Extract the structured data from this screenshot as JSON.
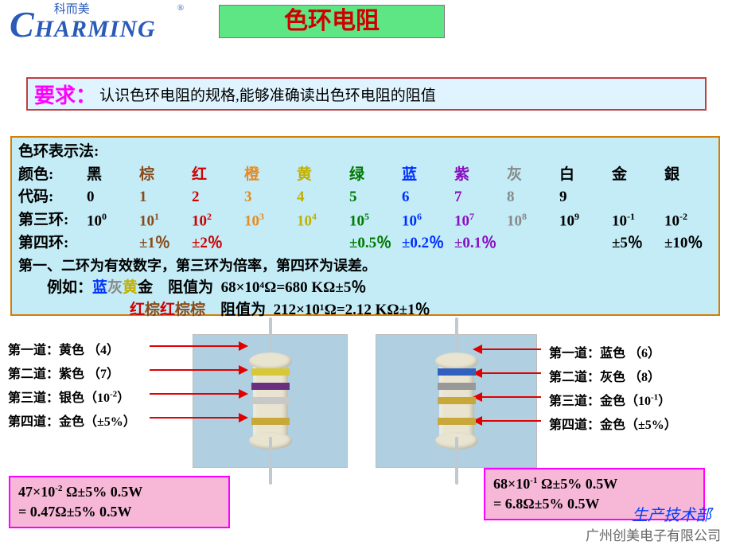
{
  "logo": {
    "latin": "HARMING",
    "big": "C",
    "cn": "科而美",
    "reg": "®"
  },
  "title": "色环电阻",
  "requirement": {
    "label": "要求：",
    "text": "认识色环电阻的规格,能够准确读出色环电阻的阻值"
  },
  "table": {
    "heading": "色环表示法:",
    "row_color_label": "颜色:",
    "row_code_label": "代码:",
    "row_third_label": "第三环:",
    "row_fourth_label": "第四环:",
    "colors": [
      "黑",
      "棕",
      "红",
      "橙",
      "黄",
      "绿",
      "蓝",
      "紫",
      "灰",
      "白",
      "金",
      "銀"
    ],
    "color_hex": [
      "#000000",
      "#8a4a1a",
      "#d00000",
      "#e88a20",
      "#c0b000",
      "#007a00",
      "#0030ff",
      "#8a10c0",
      "#888888",
      "#000000",
      "#000000",
      "#000000"
    ],
    "codes": [
      "0",
      "1",
      "2",
      "3",
      "4",
      "5",
      "6",
      "7",
      "8",
      "9",
      "",
      ""
    ],
    "third_base": "10",
    "third_exp": [
      "0",
      "1",
      "2",
      "3",
      "4",
      "5",
      "6",
      "7",
      "8",
      "9",
      "-1",
      "-2"
    ],
    "fourth": [
      "",
      "±1％",
      "±2％",
      "",
      "",
      "±0.5％",
      "±0.2％",
      "±0.1％",
      "",
      "",
      "±5％",
      "±10％"
    ],
    "note": "第一、二环为有效数字，第三环为倍率，第四环为误差。",
    "example_label": "例如：",
    "ex1_colors": [
      {
        "t": "蓝",
        "c": "#0030ff"
      },
      {
        "t": "灰",
        "c": "#888888"
      },
      {
        "t": "黄",
        "c": "#c0b000"
      },
      {
        "t": "金",
        "c": "#000000"
      }
    ],
    "ex1_rest": "    阻值为  68×10⁴Ω=680 KΩ±5％",
    "ex2_colors": [
      {
        "t": "红",
        "c": "#d00000"
      },
      {
        "t": "棕",
        "c": "#8a4a1a"
      },
      {
        "t": "红",
        "c": "#d00000"
      },
      {
        "t": "棕",
        "c": "#8a4a1a"
      },
      {
        "t": "棕",
        "c": "#8a4a1a"
      }
    ],
    "ex2_rest": "    阻值为  212×10¹Ω=2.12 KΩ±1％"
  },
  "left_ex": {
    "bands": [
      {
        "label": "第一道：黄色  （4）"
      },
      {
        "label": "第二道：紫色  （7）"
      },
      {
        "label": "第三道：银色（10",
        "sup": "-2",
        "tail": "）"
      },
      {
        "label": "第四道：金色（±5%）"
      }
    ],
    "band_colors": [
      "#d8c838",
      "#6a3080",
      "#c8c8c8",
      "#c8a838"
    ],
    "result_l1": "47×10",
    "result_sup": "-2",
    "result_l1b": " Ω±5%  0.5W",
    "result_l2": "= 0.47Ω±5%  0.5W"
  },
  "right_ex": {
    "bands": [
      {
        "label": "第一道：蓝色  （6）"
      },
      {
        "label": "第二道：灰色  （8）"
      },
      {
        "label": "第三道：金色（10",
        "sup": "-1",
        "tail": "）"
      },
      {
        "label": "第四道：金色（±5%）"
      }
    ],
    "band_colors": [
      "#3060c0",
      "#989898",
      "#c8a838",
      "#c8a838"
    ],
    "result_l1": "68×10",
    "result_sup": "-1",
    "result_l1b": " Ω±5%  0.5W",
    "result_l2": "= 6.8Ω±5%  0.5W"
  },
  "footer1": "生产技术部",
  "footer2": "广州创美电子有限公司",
  "styles": {
    "title_bg": "#5ee685",
    "title_fg": "#d00000",
    "req_bg": "#dff4ff",
    "req_border": "#c04040",
    "req_label_fg": "#ff00ff",
    "table_bg": "#c3ecf7",
    "table_border": "#d67d00",
    "result_bg": "#f7b8d8",
    "result_border": "#ff00ff",
    "arrow_color": "#e00000",
    "logo_color": "#2a5bb8"
  }
}
